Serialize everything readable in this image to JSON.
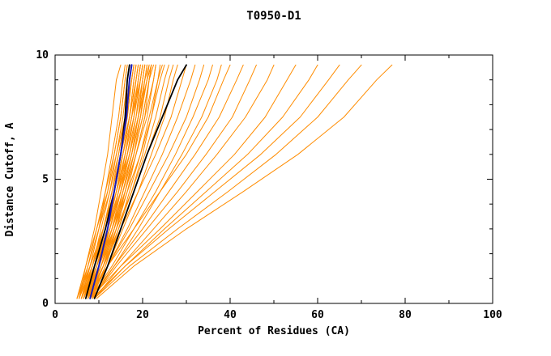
{
  "chart_data": {
    "type": "line",
    "title": "T0950-D1",
    "xlabel": "Percent of Residues (CA)",
    "ylabel": "Distance Cutoff, A",
    "xlim": [
      0,
      100
    ],
    "ylim": [
      0,
      10
    ],
    "x_major_ticks": [
      0,
      20,
      40,
      60,
      80,
      100
    ],
    "x_minor_ticks": [
      10,
      30,
      50,
      70,
      90
    ],
    "y_major_ticks": [
      0,
      5,
      10
    ],
    "y_minor_ticks": [
      1,
      2,
      3,
      4,
      6,
      7,
      8,
      9
    ],
    "grid": false,
    "legend": "none",
    "axis_color": "#000000",
    "colors": {
      "orange": "#ff8c00",
      "black": "#000000",
      "blue": "#1a1ab8"
    },
    "line_widths": {
      "orange": 1,
      "black": 1.8,
      "blue": 2
    },
    "y_levels": [
      0.2,
      1.5,
      3,
      4.5,
      6,
      7.5,
      9,
      9.6
    ],
    "series": [
      {
        "color": "orange",
        "x": [
          5,
          7,
          9,
          10.5,
          12,
          13,
          14,
          15
        ]
      },
      {
        "color": "orange",
        "x": [
          6,
          8,
          10,
          11.5,
          13,
          14.5,
          15.5,
          16
        ]
      },
      {
        "color": "orange",
        "x": [
          5.5,
          7,
          9.5,
          12,
          13.5,
          15,
          16,
          16.5
        ]
      },
      {
        "color": "orange",
        "x": [
          6,
          8.5,
          10.5,
          12.5,
          14,
          15.5,
          16.5,
          17
        ]
      },
      {
        "color": "orange",
        "x": [
          7,
          9,
          11,
          13,
          14.5,
          16,
          17,
          17.5
        ]
      },
      {
        "color": "orange",
        "x": [
          5,
          7.5,
          10,
          12,
          14,
          16,
          17.5,
          18
        ]
      },
      {
        "color": "orange",
        "x": [
          6.5,
          9,
          11.5,
          13.5,
          15,
          16.5,
          17.5,
          18
        ]
      },
      {
        "color": "orange",
        "x": [
          7,
          10,
          12,
          14,
          15.5,
          17,
          18,
          18.5
        ]
      },
      {
        "color": "orange",
        "x": [
          6,
          8,
          11,
          13.5,
          15.5,
          17,
          18.5,
          19
        ]
      },
      {
        "color": "orange",
        "x": [
          7.5,
          10,
          12.5,
          14.5,
          16,
          17.5,
          18.5,
          19
        ]
      },
      {
        "color": "orange",
        "x": [
          6.5,
          9.5,
          12,
          14,
          16,
          17.5,
          19,
          19.5
        ]
      },
      {
        "color": "orange",
        "x": [
          5.5,
          8,
          11,
          13.5,
          15.5,
          17.5,
          19.5,
          20
        ]
      },
      {
        "color": "orange",
        "x": [
          7,
          10,
          13,
          15,
          17,
          18.5,
          19.5,
          20
        ]
      },
      {
        "color": "orange",
        "x": [
          8,
          11,
          13.5,
          15.5,
          17.5,
          19,
          20,
          20.5
        ]
      },
      {
        "color": "orange",
        "x": [
          6,
          9,
          12,
          14.5,
          17,
          19,
          20.5,
          21
        ]
      },
      {
        "color": "orange",
        "x": [
          7.5,
          10.5,
          13,
          15.5,
          17.5,
          19.5,
          20.5,
          21
        ]
      },
      {
        "color": "orange",
        "x": [
          6.5,
          9,
          12.5,
          15,
          17,
          19,
          20.5,
          21.5
        ]
      },
      {
        "color": "orange",
        "x": [
          7,
          10,
          13,
          15.5,
          18,
          20,
          21.5,
          22
        ]
      },
      {
        "color": "orange",
        "x": [
          8,
          11,
          14,
          16.5,
          18.5,
          20.5,
          21.5,
          22
        ]
      },
      {
        "color": "orange",
        "x": [
          6,
          9.5,
          13,
          16,
          18.5,
          20.5,
          22.5,
          23
        ]
      },
      {
        "color": "orange",
        "x": [
          7,
          10.5,
          13.5,
          16,
          18.5,
          21,
          22.5,
          23
        ]
      },
      {
        "color": "orange",
        "x": [
          8,
          11.5,
          14.5,
          17,
          19.5,
          21.5,
          23.5,
          24
        ]
      },
      {
        "color": "orange",
        "x": [
          6.5,
          10,
          13.5,
          16.5,
          19.5,
          22,
          24,
          25
        ]
      },
      {
        "color": "orange",
        "x": [
          7,
          10.5,
          14,
          17.5,
          20.5,
          23,
          25,
          26
        ]
      },
      {
        "color": "orange",
        "x": [
          7.5,
          11,
          15,
          18,
          21,
          24,
          26,
          27
        ]
      },
      {
        "color": "orange",
        "x": [
          8,
          12,
          15.5,
          19,
          22,
          25,
          27,
          28
        ]
      },
      {
        "color": "orange",
        "x": [
          7,
          11,
          15,
          19,
          23,
          26.5,
          29,
          30
        ]
      },
      {
        "color": "orange",
        "x": [
          8,
          12,
          16.5,
          20.5,
          24.5,
          28,
          31,
          32
        ]
      },
      {
        "color": "orange",
        "x": [
          7.5,
          12,
          17,
          21.5,
          26,
          30,
          33,
          34
        ]
      },
      {
        "color": "orange",
        "x": [
          8,
          13,
          18,
          23,
          27.5,
          31.5,
          35,
          36
        ]
      },
      {
        "color": "orange",
        "x": [
          8.5,
          13.5,
          19,
          24,
          29,
          33.5,
          37,
          38
        ]
      },
      {
        "color": "orange",
        "x": [
          7,
          12,
          18,
          24,
          30,
          35,
          38.5,
          40
        ]
      },
      {
        "color": "orange",
        "x": [
          8,
          13.5,
          20,
          26,
          32,
          37.5,
          41.5,
          43
        ]
      },
      {
        "color": "orange",
        "x": [
          8.5,
          14,
          21,
          28,
          34.5,
          40.5,
          44.5,
          46
        ]
      },
      {
        "color": "orange",
        "x": [
          9,
          15,
          22.5,
          30,
          37,
          43.5,
          48.5,
          50
        ]
      },
      {
        "color": "orange",
        "x": [
          8,
          15,
          24,
          32.5,
          41,
          48,
          53,
          55
        ]
      },
      {
        "color": "orange",
        "x": [
          9,
          16,
          25,
          34.5,
          44,
          52,
          58,
          60
        ]
      },
      {
        "color": "orange",
        "x": [
          8.5,
          16,
          26,
          36.5,
          47,
          56,
          62.5,
          65
        ]
      },
      {
        "color": "orange",
        "x": [
          9,
          17,
          28,
          39.5,
          50.5,
          60,
          67,
          70
        ]
      },
      {
        "color": "orange",
        "x": [
          9.5,
          18,
          30,
          43,
          55.5,
          66,
          73.5,
          77
        ]
      },
      {
        "color": "orange",
        "x": [
          5,
          8,
          10,
          12.5,
          14.5,
          16,
          17,
          17.5
        ]
      },
      {
        "color": "orange",
        "x": [
          6,
          8.5,
          11.5,
          14,
          16.5,
          18,
          19,
          19.5
        ]
      },
      {
        "color": "orange",
        "x": [
          7,
          9.5,
          12,
          14.5,
          16.5,
          18.5,
          20,
          20.5
        ]
      },
      {
        "color": "orange",
        "x": [
          5.5,
          8.5,
          11.5,
          14,
          16,
          18,
          19.5,
          20
        ]
      },
      {
        "color": "orange",
        "x": [
          6.5,
          10,
          13,
          15.5,
          17.5,
          19,
          20,
          20.5
        ]
      },
      {
        "color": "orange",
        "x": [
          5.5,
          7.5,
          9.5,
          11.5,
          13.5,
          15,
          16,
          16.5
        ]
      },
      {
        "color": "orange",
        "x": [
          6,
          9,
          11,
          13,
          15,
          16.5,
          17.5,
          18
        ]
      },
      {
        "color": "orange",
        "x": [
          6.5,
          8.5,
          11,
          13.5,
          15.5,
          17,
          18,
          18.5
        ]
      },
      {
        "color": "orange",
        "x": [
          7,
          9.5,
          12.5,
          15,
          16.5,
          18,
          19,
          19.5
        ]
      },
      {
        "color": "orange",
        "x": [
          5,
          8,
          11,
          13,
          15,
          17,
          18.5,
          19
        ]
      },
      {
        "color": "orange",
        "x": [
          7.5,
          10.5,
          13.5,
          16,
          18,
          19.5,
          21,
          21.5
        ]
      },
      {
        "color": "orange",
        "x": [
          8.5,
          11.5,
          14,
          16,
          18,
          20,
          21.5,
          22.5
        ]
      },
      {
        "color": "orange",
        "x": [
          6,
          9,
          12,
          15,
          17.5,
          19.5,
          21,
          22
        ]
      },
      {
        "color": "orange",
        "x": [
          7,
          10,
          12.5,
          15,
          17,
          19,
          21,
          22
        ]
      },
      {
        "color": "orange",
        "x": [
          8,
          11,
          14.5,
          17.5,
          20,
          22,
          23.5,
          24.5
        ]
      },
      {
        "color": "black",
        "x": [
          7,
          9,
          11.5,
          13.5,
          15,
          16,
          16.5,
          17
        ]
      },
      {
        "color": "black",
        "x": [
          9,
          12,
          15,
          18,
          21,
          24.5,
          28,
          30
        ]
      },
      {
        "color": "blue",
        "x": [
          8,
          10,
          12,
          13.5,
          15,
          16.3,
          17,
          17.5
        ]
      }
    ]
  }
}
